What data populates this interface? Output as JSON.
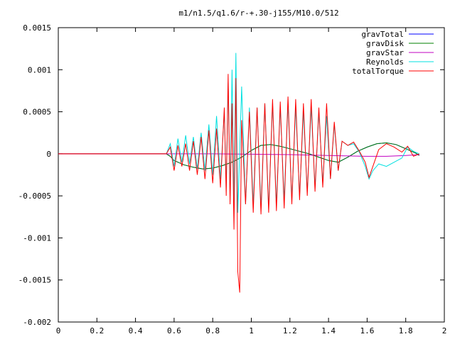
{
  "chart_data": {
    "type": "line",
    "title": "m1/n1.5/q1.6/r-+.30-j155/M10.0/512",
    "xlabel": "",
    "ylabel": "",
    "xlim": [
      0,
      2
    ],
    "ylim": [
      -0.002,
      0.0015
    ],
    "x_ticks": [
      0,
      0.2,
      0.4,
      0.6,
      0.8,
      1,
      1.2,
      1.4,
      1.6,
      1.8,
      2
    ],
    "x_tick_labels": [
      "0",
      "0.2",
      "0.4",
      "0.6",
      "0.8",
      "1",
      "1.2",
      "1.4",
      "1.6",
      "1.8",
      "2"
    ],
    "y_ticks": [
      -0.002,
      -0.0015,
      -0.001,
      -0.0005,
      0,
      0.0005,
      0.001,
      0.0015
    ],
    "y_tick_labels": [
      "-0.002",
      "-0.0015",
      "-0.001",
      "-0.0005",
      "0",
      "0.0005",
      "0.001",
      "0.0015"
    ],
    "grid": false,
    "legend_position": "top-right",
    "series": [
      {
        "name": "gravTotal",
        "color": "#0000ff",
        "points": [
          [
            0,
            0
          ],
          [
            0.56,
            0
          ],
          [
            0.58,
            -3e-05
          ],
          [
            0.6,
            -8e-05
          ],
          [
            0.65,
            -0.00013
          ],
          [
            0.7,
            -0.00016
          ],
          [
            0.75,
            -0.00018
          ],
          [
            0.8,
            -0.00017
          ],
          [
            0.85,
            -0.00014
          ],
          [
            0.9,
            -0.0001
          ],
          [
            0.95,
            -4e-05
          ],
          [
            1.0,
            4e-05
          ],
          [
            1.05,
            0.0001
          ],
          [
            1.1,
            0.00011
          ],
          [
            1.15,
            9e-05
          ],
          [
            1.2,
            6e-05
          ],
          [
            1.25,
            3e-05
          ],
          [
            1.3,
            0
          ],
          [
            1.35,
            -4e-05
          ],
          [
            1.4,
            -8e-05
          ],
          [
            1.45,
            -0.0001
          ],
          [
            1.5,
            -4e-05
          ],
          [
            1.55,
            3e-05
          ],
          [
            1.6,
            8e-05
          ],
          [
            1.65,
            0.00012
          ],
          [
            1.7,
            0.00013
          ],
          [
            1.75,
            0.00011
          ],
          [
            1.8,
            6e-05
          ],
          [
            1.85,
            1e-05
          ],
          [
            1.87,
            -2e-05
          ]
        ]
      },
      {
        "name": "gravDisk",
        "color": "#008000",
        "points": [
          [
            0,
            0
          ],
          [
            0.56,
            0
          ],
          [
            0.58,
            -3e-05
          ],
          [
            0.6,
            -8e-05
          ],
          [
            0.65,
            -0.00013
          ],
          [
            0.7,
            -0.00016
          ],
          [
            0.75,
            -0.00018
          ],
          [
            0.8,
            -0.00017
          ],
          [
            0.85,
            -0.00014
          ],
          [
            0.9,
            -0.0001
          ],
          [
            0.95,
            -4e-05
          ],
          [
            1.0,
            4e-05
          ],
          [
            1.05,
            0.0001
          ],
          [
            1.1,
            0.00011
          ],
          [
            1.15,
            9e-05
          ],
          [
            1.2,
            6e-05
          ],
          [
            1.25,
            3e-05
          ],
          [
            1.3,
            0
          ],
          [
            1.35,
            -4e-05
          ],
          [
            1.4,
            -8e-05
          ],
          [
            1.45,
            -0.0001
          ],
          [
            1.5,
            -4e-05
          ],
          [
            1.55,
            3e-05
          ],
          [
            1.6,
            8e-05
          ],
          [
            1.65,
            0.00012
          ],
          [
            1.7,
            0.00013
          ],
          [
            1.75,
            0.00011
          ],
          [
            1.8,
            6e-05
          ],
          [
            1.85,
            1e-05
          ],
          [
            1.87,
            -2e-05
          ]
        ]
      },
      {
        "name": "gravStar",
        "color": "#c000c0",
        "points": [
          [
            0,
            0
          ],
          [
            0.8,
            0
          ],
          [
            1.0,
            -5e-06
          ],
          [
            1.2,
            -1e-05
          ],
          [
            1.4,
            -2e-05
          ],
          [
            1.6,
            -3e-05
          ],
          [
            1.7,
            -3e-05
          ],
          [
            1.8,
            -2e-05
          ],
          [
            1.87,
            -1e-05
          ]
        ]
      },
      {
        "name": "Reynolds",
        "color": "#00e0e0",
        "points": [
          [
            0.56,
            0
          ],
          [
            0.58,
            0.00012
          ],
          [
            0.6,
            -0.00015
          ],
          [
            0.62,
            0.00018
          ],
          [
            0.64,
            -0.0001
          ],
          [
            0.66,
            0.00022
          ],
          [
            0.68,
            -0.00012
          ],
          [
            0.7,
            0.0002
          ],
          [
            0.72,
            -0.00018
          ],
          [
            0.74,
            0.00025
          ],
          [
            0.76,
            -0.0002
          ],
          [
            0.78,
            0.00035
          ],
          [
            0.8,
            -0.00025
          ],
          [
            0.82,
            0.00045
          ],
          [
            0.84,
            -0.0003
          ],
          [
            0.86,
            0.0005
          ],
          [
            0.87,
            -0.0004
          ],
          [
            0.88,
            0.00085
          ],
          [
            0.89,
            -0.0005
          ],
          [
            0.9,
            0.001
          ],
          [
            0.91,
            -0.0006
          ],
          [
            0.92,
            0.0012
          ],
          [
            0.93,
            -0.0007
          ],
          [
            0.95,
            0.0008
          ],
          [
            0.97,
            -0.0006
          ],
          [
            0.99,
            0.00055
          ],
          [
            1.01,
            -0.0006
          ],
          [
            1.03,
            0.00055
          ],
          [
            1.05,
            -0.00065
          ],
          [
            1.07,
            0.0006
          ],
          [
            1.09,
            -0.00065
          ],
          [
            1.11,
            0.0006
          ],
          [
            1.13,
            -0.0006
          ],
          [
            1.15,
            0.00055
          ],
          [
            1.17,
            -0.00055
          ],
          [
            1.19,
            0.0006
          ],
          [
            1.21,
            -0.00055
          ],
          [
            1.23,
            0.00055
          ],
          [
            1.25,
            -0.0005
          ],
          [
            1.27,
            0.0005
          ],
          [
            1.29,
            -0.00045
          ],
          [
            1.31,
            0.00055
          ],
          [
            1.33,
            -0.0004
          ],
          [
            1.35,
            0.0005
          ],
          [
            1.37,
            -0.00035
          ],
          [
            1.39,
            0.00045
          ],
          [
            1.41,
            -0.0003
          ],
          [
            1.43,
            0.00035
          ],
          [
            1.45,
            -0.0002
          ],
          [
            1.47,
            0.00015
          ],
          [
            1.5,
            0.0001
          ],
          [
            1.53,
            0.00012
          ],
          [
            1.56,
            2e-05
          ],
          [
            1.59,
            -0.00015
          ],
          [
            1.61,
            -0.0003
          ],
          [
            1.63,
            -0.0002
          ],
          [
            1.66,
            -0.00012
          ],
          [
            1.7,
            -0.00015
          ],
          [
            1.74,
            -0.0001
          ],
          [
            1.78,
            -5e-05
          ],
          [
            1.81,
            8e-05
          ],
          [
            1.84,
            3e-05
          ],
          [
            1.87,
            0
          ]
        ]
      },
      {
        "name": "totalTorque",
        "color": "#ff0000",
        "points": [
          [
            0,
            0
          ],
          [
            0.56,
            0
          ],
          [
            0.58,
            8e-05
          ],
          [
            0.6,
            -0.0002
          ],
          [
            0.62,
            0.0001
          ],
          [
            0.64,
            -0.00015
          ],
          [
            0.66,
            0.00012
          ],
          [
            0.68,
            -0.0002
          ],
          [
            0.7,
            0.00015
          ],
          [
            0.72,
            -0.00025
          ],
          [
            0.74,
            0.0002
          ],
          [
            0.76,
            -0.0003
          ],
          [
            0.78,
            0.00028
          ],
          [
            0.8,
            -0.00035
          ],
          [
            0.82,
            0.0003
          ],
          [
            0.84,
            -0.0004
          ],
          [
            0.86,
            0.00055
          ],
          [
            0.87,
            -0.0005
          ],
          [
            0.88,
            0.00095
          ],
          [
            0.89,
            -0.0006
          ],
          [
            0.9,
            0.0006
          ],
          [
            0.91,
            -0.0009
          ],
          [
            0.92,
            0.0009
          ],
          [
            0.93,
            -0.0014
          ],
          [
            0.94,
            -0.00165
          ],
          [
            0.95,
            0.0004
          ],
          [
            0.97,
            -0.0006
          ],
          [
            0.99,
            0.0005
          ],
          [
            1.01,
            -0.0007
          ],
          [
            1.03,
            0.00055
          ],
          [
            1.05,
            -0.00072
          ],
          [
            1.07,
            0.0006
          ],
          [
            1.09,
            -0.0007
          ],
          [
            1.11,
            0.00065
          ],
          [
            1.13,
            -0.00068
          ],
          [
            1.15,
            0.00062
          ],
          [
            1.17,
            -0.00065
          ],
          [
            1.19,
            0.00068
          ],
          [
            1.21,
            -0.0006
          ],
          [
            1.23,
            0.00065
          ],
          [
            1.25,
            -0.00055
          ],
          [
            1.27,
            0.0006
          ],
          [
            1.29,
            -0.0005
          ],
          [
            1.31,
            0.00065
          ],
          [
            1.33,
            -0.00045
          ],
          [
            1.35,
            0.00055
          ],
          [
            1.37,
            -0.0004
          ],
          [
            1.39,
            0.0006
          ],
          [
            1.41,
            -0.0003
          ],
          [
            1.43,
            0.00038
          ],
          [
            1.45,
            -0.0002
          ],
          [
            1.47,
            0.00015
          ],
          [
            1.5,
            0.0001
          ],
          [
            1.53,
            0.00014
          ],
          [
            1.56,
            3e-05
          ],
          [
            1.59,
            -0.0001
          ],
          [
            1.61,
            -0.00028
          ],
          [
            1.63,
            -0.00015
          ],
          [
            1.66,
            5e-05
          ],
          [
            1.7,
            0.00012
          ],
          [
            1.74,
            8e-05
          ],
          [
            1.78,
            2e-05
          ],
          [
            1.81,
            9e-05
          ],
          [
            1.84,
            -3e-05
          ],
          [
            1.87,
            0
          ]
        ]
      }
    ]
  }
}
